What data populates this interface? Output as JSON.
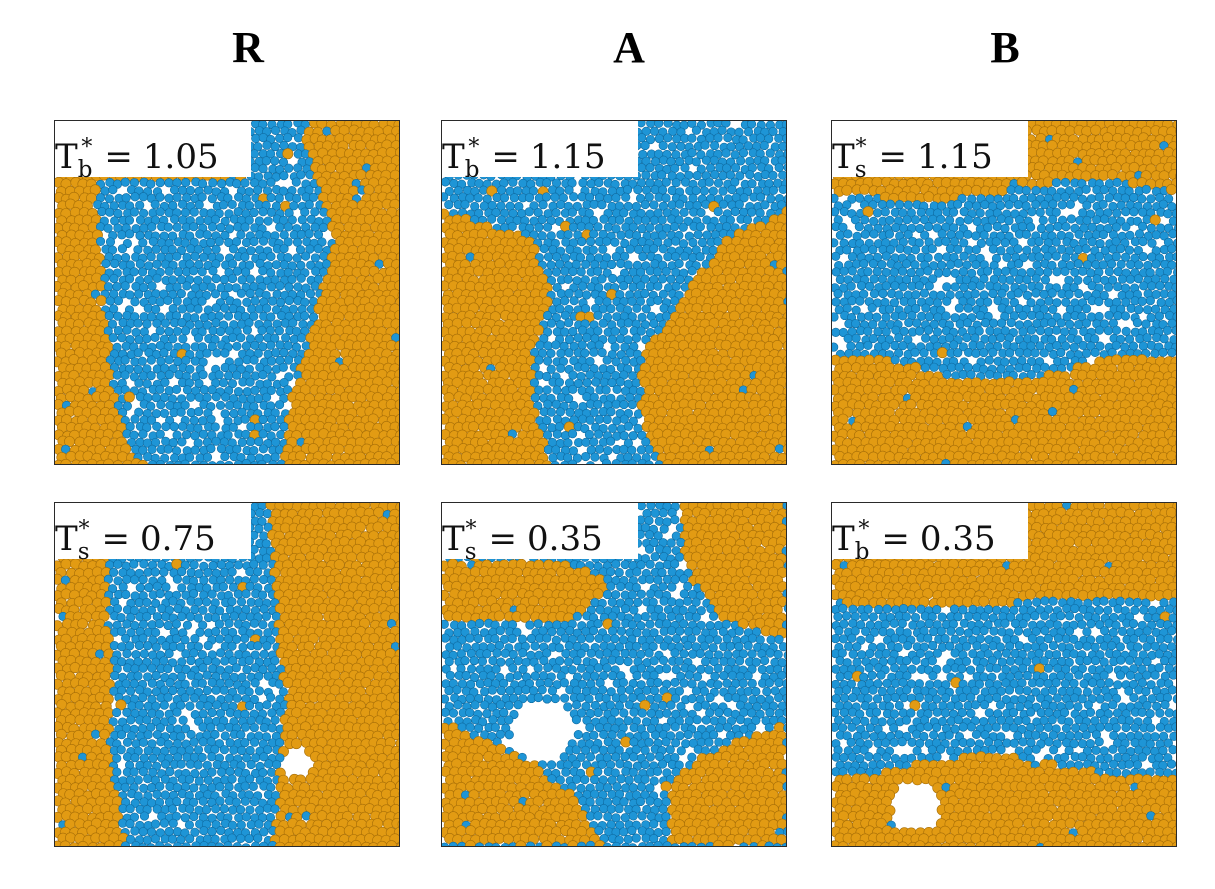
{
  "colors": {
    "orange": "#E29B13",
    "orange_edge": "#A86F08",
    "blue": "#1E95D6",
    "blue_edge": "#0E6AA0"
  },
  "columns": [
    {
      "title": "R"
    },
    {
      "title": "A"
    },
    {
      "title": "B"
    }
  ],
  "panels": [
    {
      "symbol": "T",
      "sub": "b",
      "sup": "*",
      "eq": "=",
      "value": "1.05"
    },
    {
      "symbol": "T",
      "sub": "b",
      "sup": "*",
      "eq": "=",
      "value": "1.15"
    },
    {
      "symbol": "T",
      "sub": "s",
      "sup": "*",
      "eq": "=",
      "value": "1.15"
    },
    {
      "symbol": "T",
      "sub": "s",
      "sup": "*",
      "eq": "=",
      "value": "0.75"
    },
    {
      "symbol": "T",
      "sub": "s",
      "sup": "*",
      "eq": "=",
      "value": "0.35"
    },
    {
      "symbol": "T",
      "sub": "b",
      "sup": "*",
      "eq": "=",
      "value": "0.35"
    }
  ]
}
